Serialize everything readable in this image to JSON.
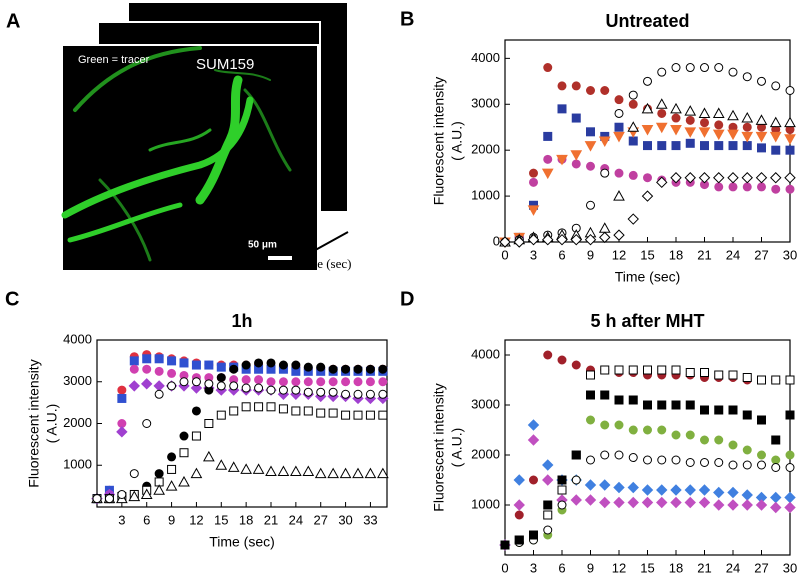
{
  "panel_a": {
    "panel_label": "A",
    "tracer_label": "Green = tracer",
    "cell_line": "SUM159",
    "scale_bar": "50 μm",
    "time_label": "Time (sec)"
  },
  "chart_data": [
    {
      "type": "scatter",
      "panel_label": "B",
      "title": "Untreated",
      "xlabel": "Time (sec)",
      "ylabel": [
        "Fluorescent  intensity",
        "( A.U.)"
      ],
      "xlim": [
        0,
        30
      ],
      "xticks": [
        0,
        3,
        6,
        9,
        12,
        15,
        18,
        21,
        24,
        27,
        30
      ],
      "ylim": [
        0,
        4400
      ],
      "yticks": [
        0,
        1000,
        2000,
        3000,
        4000
      ],
      "x": [
        0,
        1.5,
        3,
        4.5,
        6,
        7.5,
        9,
        10.5,
        12,
        13.5,
        15,
        16.5,
        18,
        19.5,
        21,
        22.5,
        24,
        25.5,
        27,
        28.5,
        30
      ],
      "series": [
        {
          "color": "#b0302a",
          "marker": "circle",
          "filled": true,
          "values": [
            0,
            100,
            1500,
            3800,
            3400,
            3400,
            3300,
            3300,
            3100,
            3000,
            2900,
            2800,
            2700,
            2650,
            2600,
            2550,
            2500,
            2500,
            2500,
            2450,
            2450
          ]
        },
        {
          "color": "#2a3ca0",
          "marker": "square",
          "filled": true,
          "values": [
            0,
            100,
            800,
            2300,
            2900,
            2700,
            2400,
            2300,
            2500,
            2200,
            2100,
            2100,
            2100,
            2150,
            2100,
            2100,
            2100,
            2100,
            2050,
            2000,
            2000
          ]
        },
        {
          "color": "#c040a0",
          "marker": "circle",
          "filled": true,
          "values": [
            0,
            100,
            1300,
            1800,
            1800,
            1700,
            1650,
            1600,
            1500,
            1450,
            1400,
            1350,
            1300,
            1300,
            1250,
            1200,
            1200,
            1200,
            1200,
            1150,
            1150
          ]
        },
        {
          "color": "#f07030",
          "marker": "triangle-down",
          "filled": true,
          "values": [
            0,
            100,
            700,
            1500,
            1800,
            1900,
            2100,
            2200,
            2300,
            2400,
            2450,
            2500,
            2450,
            2400,
            2400,
            2350,
            2350,
            2300,
            2300,
            2300,
            2250
          ]
        },
        {
          "color": "#000000",
          "marker": "circle",
          "filled": false,
          "values": [
            0,
            50,
            100,
            150,
            200,
            300,
            800,
            1500,
            2800,
            3200,
            3500,
            3700,
            3800,
            3800,
            3800,
            3800,
            3700,
            3600,
            3500,
            3400,
            3300
          ]
        },
        {
          "color": "#000000",
          "marker": "triangle",
          "filled": false,
          "values": [
            0,
            50,
            100,
            100,
            150,
            150,
            200,
            300,
            1000,
            2500,
            2900,
            3000,
            2900,
            2850,
            2800,
            2800,
            2750,
            2700,
            2650,
            2600,
            2600
          ]
        },
        {
          "color": "#000000",
          "marker": "diamond",
          "filled": false,
          "values": [
            0,
            0,
            50,
            50,
            50,
            50,
            50,
            100,
            150,
            500,
            1000,
            1300,
            1400,
            1400,
            1400,
            1400,
            1400,
            1400,
            1400,
            1400,
            1400
          ]
        }
      ]
    },
    {
      "type": "scatter",
      "panel_label": "C",
      "title": "1h",
      "xlabel": "Time (sec)",
      "ylabel": [
        "Fluorescent  intensity",
        "( A.U.)"
      ],
      "xlim": [
        0,
        35
      ],
      "xticks": [
        3,
        6,
        9,
        12,
        15,
        18,
        21,
        24,
        27,
        30,
        33
      ],
      "ylim": [
        0,
        4000
      ],
      "yticks": [
        1000,
        2000,
        3000,
        4000
      ],
      "x": [
        0,
        1.5,
        3,
        4.5,
        6,
        7.5,
        9,
        10.5,
        12,
        13.5,
        15,
        16.5,
        18,
        19.5,
        21,
        22.5,
        24,
        25.5,
        27,
        28.5,
        30,
        31.5,
        33,
        34.5
      ],
      "series": [
        {
          "color": "#e03040",
          "marker": "circle",
          "filled": true,
          "values": [
            200,
            400,
            2800,
            3600,
            3650,
            3600,
            3550,
            3500,
            3450,
            3400,
            3400,
            3400,
            3400,
            3400,
            3350,
            3350,
            3350,
            3300,
            3300,
            3300,
            3300,
            3300,
            3300,
            3300
          ]
        },
        {
          "color": "#3050d0",
          "marker": "square",
          "filled": true,
          "values": [
            200,
            400,
            2600,
            3500,
            3550,
            3550,
            3500,
            3450,
            3400,
            3400,
            3350,
            3350,
            3300,
            3300,
            3300,
            3300,
            3250,
            3250,
            3250,
            3250,
            3250,
            3250,
            3250,
            3250
          ]
        },
        {
          "color": "#d040b0",
          "marker": "circle",
          "filled": true,
          "values": [
            200,
            300,
            2000,
            3300,
            3300,
            3250,
            3200,
            3150,
            3100,
            3100,
            3100,
            3050,
            3050,
            3050,
            3000,
            3000,
            3000,
            3000,
            3000,
            3000,
            3000,
            3000,
            3000,
            3000
          ]
        },
        {
          "color": "#a040d0",
          "marker": "diamond",
          "filled": true,
          "values": [
            200,
            300,
            1800,
            2900,
            2950,
            2900,
            2900,
            2900,
            2850,
            2850,
            2800,
            2800,
            2800,
            2800,
            2800,
            2700,
            2700,
            2700,
            2650,
            2650,
            2650,
            2600,
            2600,
            2600
          ]
        },
        {
          "color": "#000000",
          "marker": "circle",
          "filled": true,
          "values": [
            200,
            200,
            250,
            300,
            500,
            800,
            1200,
            1700,
            2300,
            2800,
            3100,
            3300,
            3400,
            3450,
            3450,
            3400,
            3400,
            3350,
            3350,
            3300,
            3300,
            3300,
            3300,
            3300
          ]
        },
        {
          "color": "#000000",
          "marker": "square",
          "filled": false,
          "values": [
            200,
            200,
            250,
            300,
            400,
            600,
            900,
            1300,
            1700,
            2000,
            2200,
            2300,
            2400,
            2400,
            2400,
            2350,
            2300,
            2300,
            2250,
            2250,
            2200,
            2200,
            2200,
            2200
          ]
        },
        {
          "color": "#000000",
          "marker": "triangle",
          "filled": false,
          "values": [
            200,
            200,
            200,
            250,
            300,
            400,
            500,
            600,
            800,
            1200,
            1000,
            950,
            900,
            900,
            850,
            850,
            850,
            850,
            800,
            800,
            800,
            800,
            800,
            800
          ]
        },
        {
          "color": "#000000",
          "marker": "circle",
          "filled": false,
          "values": [
            200,
            200,
            300,
            800,
            2000,
            2700,
            2900,
            3000,
            3000,
            2950,
            2900,
            2900,
            2850,
            2850,
            2800,
            2800,
            2800,
            2750,
            2750,
            2750,
            2700,
            2700,
            2700,
            2700
          ]
        }
      ]
    },
    {
      "type": "scatter",
      "panel_label": "D",
      "title": "5 h after MHT",
      "xlabel": "Time ( sec)",
      "ylabel": [
        "Fluorescent  intensity",
        "( A.U.)"
      ],
      "xlim": [
        0,
        30
      ],
      "xticks": [
        0,
        3,
        6,
        9,
        12,
        15,
        18,
        21,
        24,
        27,
        30
      ],
      "ylim": [
        0,
        4300
      ],
      "yticks": [
        1000,
        2000,
        3000,
        4000
      ],
      "x": [
        0,
        1.5,
        3,
        4.5,
        6,
        7.5,
        9,
        10.5,
        12,
        13.5,
        15,
        16.5,
        18,
        19.5,
        21,
        22.5,
        24,
        25.5,
        27,
        28.5,
        30
      ],
      "series": [
        {
          "color": "#a0202a",
          "marker": "circle",
          "filled": true,
          "values": [
            200,
            800,
            1500,
            4000,
            3900,
            3800,
            3700,
            3700,
            3650,
            3650,
            3600,
            3600,
            3600,
            3600,
            3550,
            3550,
            3550,
            3500,
            3500,
            3500,
            3500
          ]
        },
        {
          "color": "#4080e0",
          "marker": "diamond",
          "filled": true,
          "values": [
            200,
            1500,
            2600,
            1800,
            1500,
            1500,
            1400,
            1400,
            1350,
            1350,
            1300,
            1300,
            1300,
            1300,
            1300,
            1250,
            1250,
            1200,
            1150,
            1150,
            1150
          ]
        },
        {
          "color": "#c050c0",
          "marker": "diamond",
          "filled": true,
          "values": [
            200,
            1000,
            2300,
            1500,
            1100,
            1100,
            1100,
            1050,
            1050,
            1050,
            1050,
            1050,
            1050,
            1050,
            1050,
            1000,
            1000,
            1000,
            1000,
            950,
            950
          ]
        },
        {
          "color": "#80b040",
          "marker": "circle",
          "filled": true,
          "values": [
            200,
            250,
            300,
            400,
            900,
            1500,
            2700,
            2600,
            2600,
            2500,
            2500,
            2500,
            2400,
            2400,
            2300,
            2300,
            2200,
            2100,
            2000,
            1900,
            2000
          ]
        },
        {
          "color": "#000000",
          "marker": "square",
          "filled": false,
          "values": [
            200,
            300,
            400,
            800,
            1300,
            2000,
            3600,
            3700,
            3700,
            3700,
            3700,
            3700,
            3700,
            3650,
            3650,
            3600,
            3600,
            3550,
            3500,
            3500,
            3500
          ]
        },
        {
          "color": "#000000",
          "marker": "circle",
          "filled": false,
          "values": [
            200,
            250,
            300,
            500,
            1000,
            1500,
            1900,
            2000,
            2000,
            1950,
            1900,
            1900,
            1900,
            1850,
            1850,
            1850,
            1800,
            1800,
            1800,
            1750,
            1750
          ]
        },
        {
          "color": "#000000",
          "marker": "square",
          "filled": true,
          "values": [
            200,
            300,
            400,
            1000,
            1500,
            2000,
            3200,
            3200,
            3100,
            3100,
            3000,
            3000,
            3000,
            3000,
            2900,
            2900,
            2900,
            2800,
            2700,
            2300,
            2800
          ]
        }
      ]
    }
  ]
}
